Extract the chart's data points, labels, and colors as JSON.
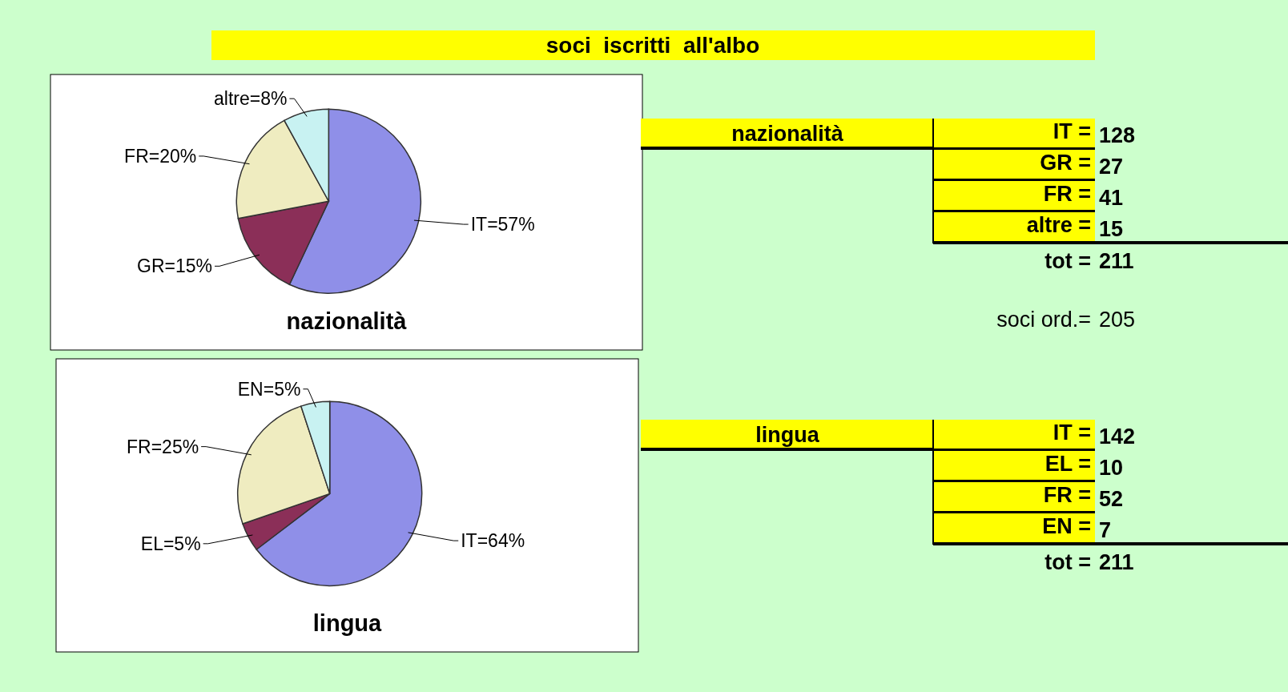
{
  "chart_data": [
    {
      "type": "other",
      "title": "soci  iscritti  all'albo"
    },
    {
      "type": "pie",
      "title": "nazionalità",
      "categories": [
        "IT",
        "GR",
        "FR",
        "altre"
      ],
      "values": [
        57,
        15,
        20,
        8
      ],
      "value_labels": [
        "=57%",
        "=15%",
        "=20%",
        "=8%"
      ],
      "colors": [
        "#8f8fe8",
        "#8b2f58",
        "#efecc0",
        "#c8f2f2"
      ]
    },
    {
      "type": "other",
      "title": "nazionalità",
      "categories": [
        "IT =",
        "GR =",
        "FR =",
        "altre ="
      ],
      "values": [
        128,
        27,
        41,
        15
      ],
      "data_labels": true,
      "annotations": [
        "tot = 211",
        "soci ord.= 205"
      ]
    },
    {
      "type": "pie",
      "title": "lingua",
      "categories": [
        "IT",
        "EL",
        "FR",
        "EN"
      ],
      "values": [
        64,
        5,
        25,
        5
      ],
      "value_labels": [
        "=64%",
        "=5%",
        "=25%",
        "=5%"
      ],
      "colors": [
        "#8f8fe8",
        "#8b2f58",
        "#efecc0",
        "#c8f2f2"
      ]
    },
    {
      "type": "other",
      "title": "lingua",
      "categories": [
        "IT =",
        "EL =",
        "FR =",
        "EN ="
      ],
      "values": [
        142,
        10,
        52,
        7
      ],
      "data_labels": true,
      "annotations": [
        "tot = 211"
      ]
    }
  ]
}
